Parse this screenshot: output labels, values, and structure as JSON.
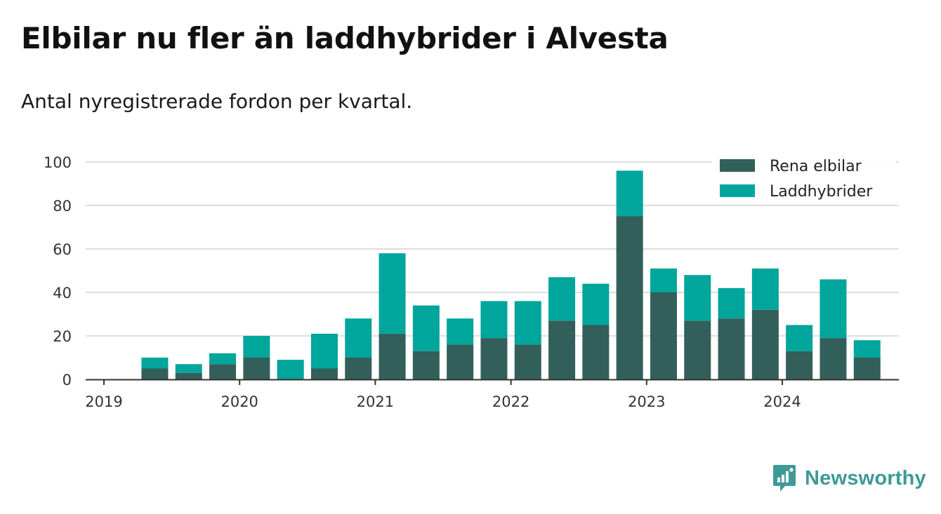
{
  "header": {
    "title": "Elbilar nu fler än laddhybrider i Alvesta",
    "subtitle": "Antal nyregistrerade fordon per kvartal."
  },
  "brand": {
    "name": "Newsworthy",
    "color": "#3e9a96"
  },
  "chart_data": {
    "type": "bar",
    "stacked": true,
    "title": "Elbilar nu fler än laddhybrider i Alvesta",
    "subtitle": "Antal nyregistrerade fordon per kvartal.",
    "xlabel": "",
    "ylabel": "",
    "ylim": [
      0,
      100
    ],
    "yticks": [
      0,
      20,
      40,
      60,
      80,
      100
    ],
    "xticks": [
      "2019",
      "2020",
      "2021",
      "2022",
      "2023",
      "2024"
    ],
    "grid": true,
    "legend_position": "top-right",
    "categories": [
      "2019 Q2",
      "2019 Q3",
      "2019 Q4",
      "2020 Q1",
      "2020 Q2",
      "2020 Q3",
      "2020 Q4",
      "2021 Q1",
      "2021 Q2",
      "2021 Q3",
      "2021 Q4",
      "2022 Q1",
      "2022 Q2",
      "2022 Q3",
      "2022 Q4",
      "2023 Q1",
      "2023 Q2",
      "2023 Q3",
      "2023 Q4",
      "2024 Q1",
      "2024 Q2",
      "2024 Q3"
    ],
    "series": [
      {
        "name": "Rena elbilar",
        "color": "#335f5a",
        "values": [
          5,
          3,
          7,
          10,
          0,
          5,
          10,
          21,
          13,
          16,
          19,
          16,
          27,
          25,
          75,
          40,
          27,
          28,
          32,
          13,
          19,
          10
        ]
      },
      {
        "name": "Laddhybrider",
        "color": "#00a59b",
        "values": [
          5,
          4,
          5,
          10,
          9,
          16,
          18,
          37,
          21,
          12,
          17,
          20,
          20,
          19,
          21,
          11,
          21,
          14,
          19,
          12,
          27,
          8
        ]
      }
    ]
  }
}
